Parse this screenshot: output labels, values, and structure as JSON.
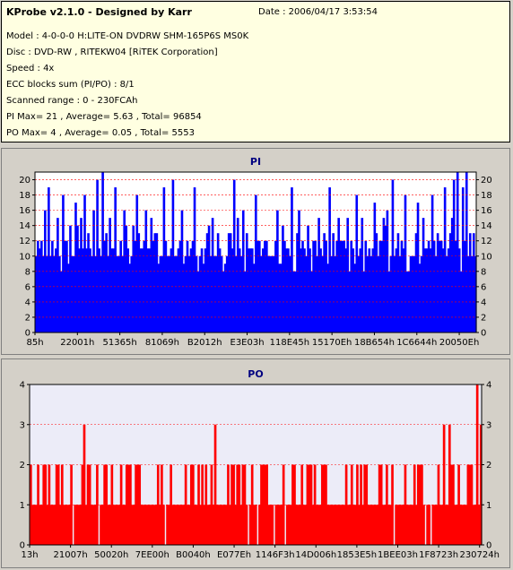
{
  "header": {
    "title": "KProbe v2.1.0 - Designed by Karr",
    "date": "Date : 2006/04/17 3:53:54",
    "lines": [
      "Model : 4-0-0-0 H:LITE-ON DVDRW SHM-165P6S MS0K",
      "Disc : DVD-RW , RITEKW04 [RiTEK Corporation]",
      "Speed : 4x",
      "ECC blocks sum (PI/PO) : 8/1",
      "Scanned range : 0 - 230FCAh",
      "PI Max= 21 , Average= 5.63 , Total= 96854",
      "PO Max= 4 , Average= 0.05 , Total= 5553"
    ]
  },
  "colors": {
    "pi_fill": "#0000ff",
    "po_fill": "#ff0000",
    "pi_bg": "#ffffff",
    "po_bg": "#ececf8",
    "grid": "#ff0000"
  },
  "chart_data": [
    {
      "type": "bar",
      "title": "PI",
      "ylim": [
        0,
        21
      ],
      "yticks": [
        0,
        2,
        4,
        6,
        8,
        10,
        12,
        14,
        16,
        18,
        20
      ],
      "xtick_labels": [
        "85h",
        "22001h",
        "51365h",
        "81069h",
        "B2012h",
        "E3E03h",
        "118E45h",
        "15170Eh",
        "18B654h",
        "1C6644h",
        "20050Eh"
      ],
      "bins": 245,
      "base_value": 12,
      "peaks": [
        {
          "pos": 0.02,
          "value": 16
        },
        {
          "pos": 0.03,
          "value": 19
        },
        {
          "pos": 0.06,
          "value": 18
        },
        {
          "pos": 0.09,
          "value": 17
        },
        {
          "pos": 0.11,
          "value": 18
        },
        {
          "pos": 0.13,
          "value": 16
        },
        {
          "pos": 0.14,
          "value": 20
        },
        {
          "pos": 0.15,
          "value": 21
        },
        {
          "pos": 0.18,
          "value": 19
        },
        {
          "pos": 0.2,
          "value": 16
        },
        {
          "pos": 0.23,
          "value": 18
        },
        {
          "pos": 0.25,
          "value": 16
        },
        {
          "pos": 0.29,
          "value": 19
        },
        {
          "pos": 0.31,
          "value": 20
        },
        {
          "pos": 0.33,
          "value": 16
        },
        {
          "pos": 0.36,
          "value": 19
        },
        {
          "pos": 0.4,
          "value": 15
        },
        {
          "pos": 0.45,
          "value": 20
        },
        {
          "pos": 0.47,
          "value": 16
        },
        {
          "pos": 0.5,
          "value": 18
        },
        {
          "pos": 0.55,
          "value": 16
        },
        {
          "pos": 0.58,
          "value": 19
        },
        {
          "pos": 0.6,
          "value": 16
        },
        {
          "pos": 0.67,
          "value": 19
        },
        {
          "pos": 0.71,
          "value": 15
        },
        {
          "pos": 0.73,
          "value": 18
        },
        {
          "pos": 0.77,
          "value": 17
        },
        {
          "pos": 0.8,
          "value": 16
        },
        {
          "pos": 0.81,
          "value": 20
        },
        {
          "pos": 0.84,
          "value": 18
        },
        {
          "pos": 0.87,
          "value": 17
        },
        {
          "pos": 0.9,
          "value": 18
        },
        {
          "pos": 0.93,
          "value": 19
        },
        {
          "pos": 0.95,
          "value": 20
        },
        {
          "pos": 0.96,
          "value": 21
        },
        {
          "pos": 0.97,
          "value": 19
        },
        {
          "pos": 0.98,
          "value": 21
        }
      ]
    },
    {
      "type": "bar",
      "title": "PO",
      "ylim": [
        0,
        4
      ],
      "yticks": [
        0,
        1,
        2,
        3,
        4
      ],
      "xtick_labels": [
        "13h",
        "21007h",
        "50020h",
        "7EE00h",
        "B0040h",
        "E077Eh",
        "1146F3h",
        "14D006h",
        "1853E5h",
        "1BEE03h",
        "1F8723h",
        "230724h"
      ],
      "bins": 245,
      "base_value": 1,
      "peaks": [
        {
          "pos": 0.0,
          "value": 2
        },
        {
          "pos": 0.03,
          "value": 2
        },
        {
          "pos": 0.06,
          "value": 2
        },
        {
          "pos": 0.09,
          "value": 2
        },
        {
          "pos": 0.12,
          "value": 3
        },
        {
          "pos": 0.13,
          "value": 2
        },
        {
          "pos": 0.17,
          "value": 2
        },
        {
          "pos": 0.2,
          "value": 2
        },
        {
          "pos": 0.22,
          "value": 2
        },
        {
          "pos": 0.31,
          "value": 2
        },
        {
          "pos": 0.36,
          "value": 2
        },
        {
          "pos": 0.38,
          "value": 2
        },
        {
          "pos": 0.4,
          "value": 2
        },
        {
          "pos": 0.41,
          "value": 3
        },
        {
          "pos": 0.44,
          "value": 2
        },
        {
          "pos": 0.49,
          "value": 2
        },
        {
          "pos": 0.52,
          "value": 2
        },
        {
          "pos": 0.58,
          "value": 2
        },
        {
          "pos": 0.62,
          "value": 2
        },
        {
          "pos": 0.65,
          "value": 2
        },
        {
          "pos": 0.7,
          "value": 2
        },
        {
          "pos": 0.74,
          "value": 2
        },
        {
          "pos": 0.79,
          "value": 2
        },
        {
          "pos": 0.83,
          "value": 2
        },
        {
          "pos": 0.87,
          "value": 2
        },
        {
          "pos": 0.92,
          "value": 3
        },
        {
          "pos": 0.93,
          "value": 3
        },
        {
          "pos": 0.95,
          "value": 2
        },
        {
          "pos": 0.97,
          "value": 2
        },
        {
          "pos": 0.99,
          "value": 4
        },
        {
          "pos": 1.0,
          "value": 3
        }
      ]
    }
  ]
}
